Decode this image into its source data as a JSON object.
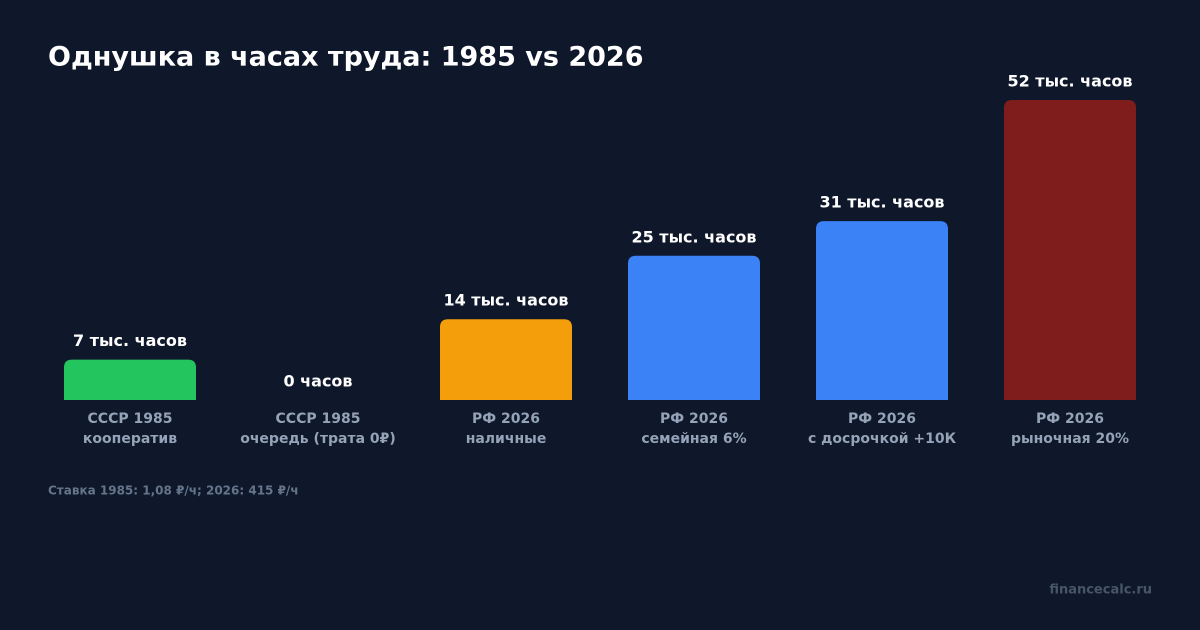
{
  "chart_data": {
    "type": "bar",
    "title": "Однушка в часах труда: 1985 vs 2026",
    "categories": [
      [
        "СССР 1985",
        "кооператив"
      ],
      [
        "СССР 1985",
        "очередь (трата 0₽)"
      ],
      [
        "РФ 2026",
        "наличные"
      ],
      [
        "РФ 2026",
        "семейная 6%"
      ],
      [
        "РФ 2026",
        "с досрочкой +10К"
      ],
      [
        "РФ 2026",
        "рыночная 20%"
      ]
    ],
    "values": [
      7,
      0,
      14,
      25,
      31,
      52
    ],
    "value_labels": [
      "7 тыс. часов",
      "0 часов",
      "14 тыс. часов",
      "25 тыс. часов",
      "31 тыс. часов",
      "52 тыс. часов"
    ],
    "colors": [
      "#22c55e",
      "#94a3b8",
      "#f59e0b",
      "#3b82f6",
      "#3b82f6",
      "#7f1d1d"
    ],
    "note": "Ставка 1985: 1,08 ₽/ч; 2026: 415 ₽/ч",
    "source": "financecalc.ru"
  }
}
